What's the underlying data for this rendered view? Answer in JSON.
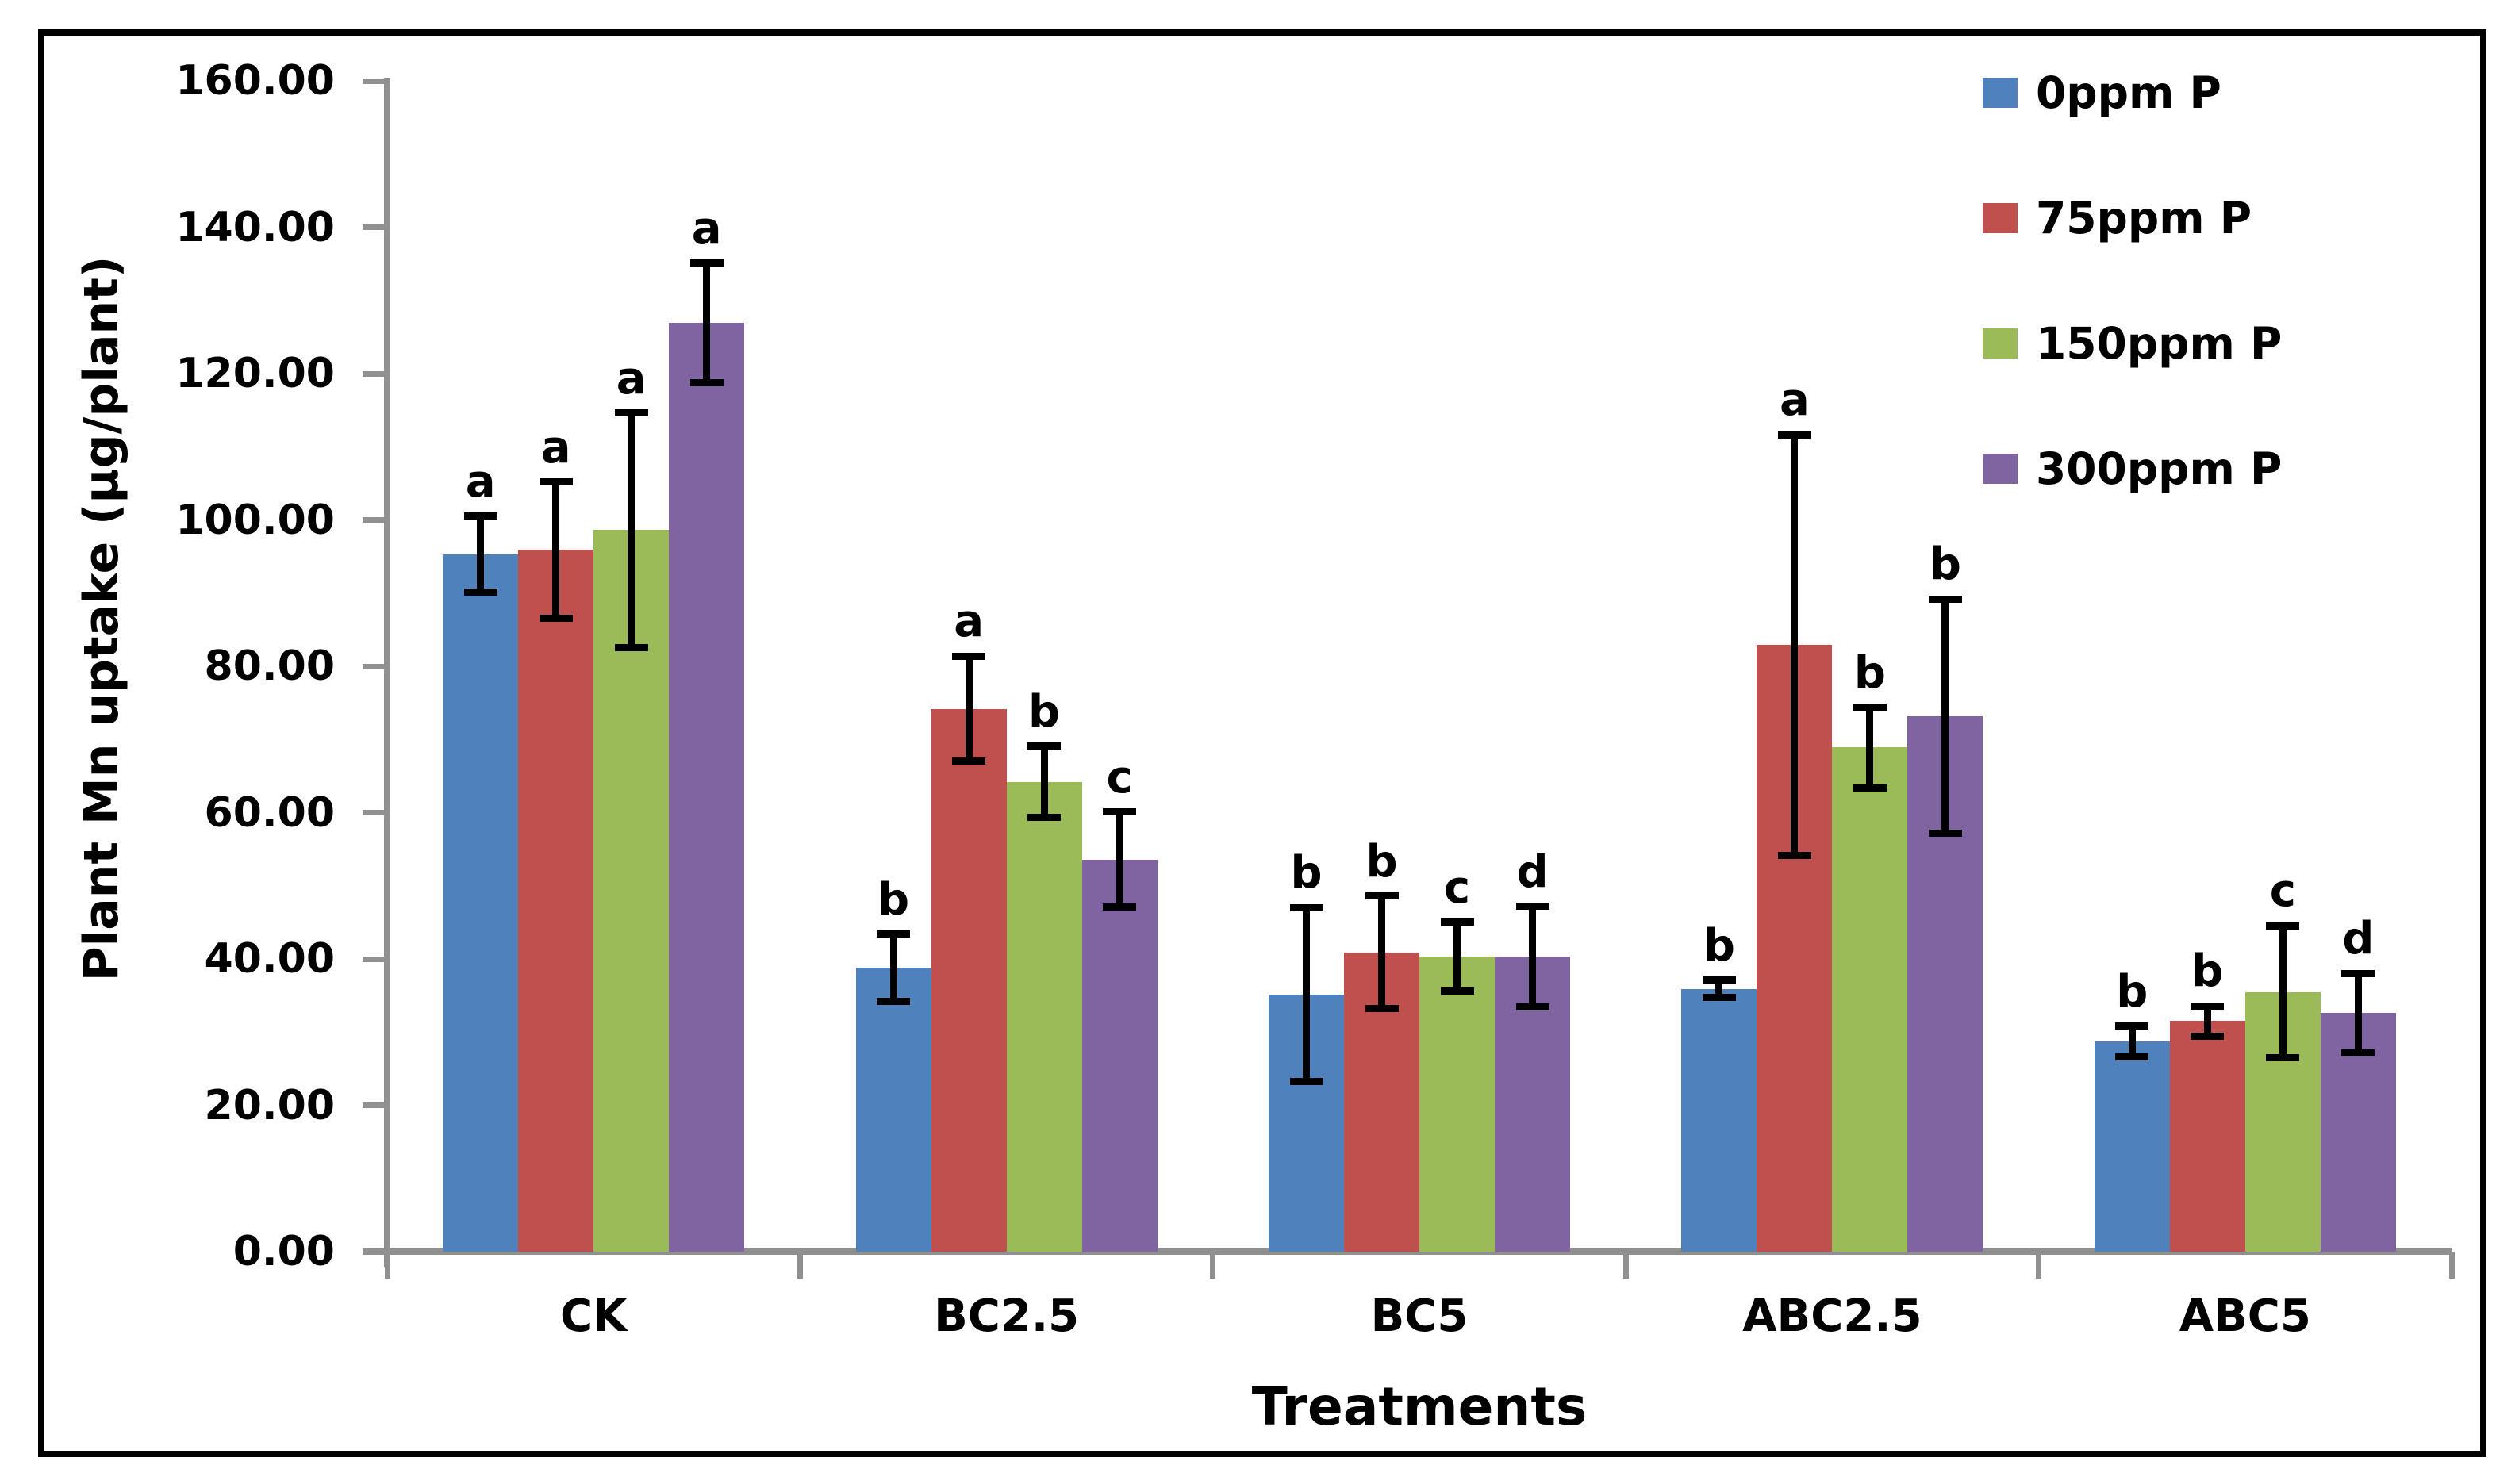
{
  "chart_data": {
    "type": "bar",
    "title": "",
    "xlabel": "Treatments",
    "ylabel": "Plant Mn uptake (µg/plant)",
    "ylim": [
      0,
      160
    ],
    "ytick_step": 20,
    "yticks": [
      "0.00",
      "20.00",
      "40.00",
      "60.00",
      "80.00",
      "100.00",
      "120.00",
      "140.00",
      "160.00"
    ],
    "grid": false,
    "legend_position": "top-right-inside",
    "error_bars": true,
    "axis_color": "#909090",
    "text_color": "#000000",
    "categories": [
      "CK",
      "BC2.5",
      "BC5",
      "ABC2.5",
      "ABC5"
    ],
    "series": [
      {
        "name": "0ppm P",
        "color": "#4F81BD",
        "values": [
          95.3,
          38.8,
          35.1,
          35.9,
          28.7
        ],
        "errors": [
          5.2,
          4.6,
          11.9,
          1.2,
          2.1
        ],
        "letters": [
          "a",
          "b",
          "b",
          "b",
          "b"
        ]
      },
      {
        "name": "75ppm P",
        "color": "#C0504D",
        "values": [
          95.9,
          74.2,
          40.9,
          82.9,
          31.5
        ],
        "errors": [
          9.3,
          7.2,
          7.7,
          28.7,
          2.1
        ],
        "letters": [
          "a",
          "a",
          "b",
          "a",
          "b"
        ]
      },
      {
        "name": "150ppm P",
        "color": "#9BBB59",
        "values": [
          98.6,
          64.2,
          40.3,
          68.9,
          35.5
        ],
        "errors": [
          16.0,
          4.9,
          4.7,
          5.5,
          9.0
        ],
        "letters": [
          "a",
          "b",
          "c",
          "b",
          "c"
        ]
      },
      {
        "name": "300ppm P",
        "color": "#8064A2",
        "values": [
          126.9,
          53.6,
          40.3,
          73.2,
          32.6
        ],
        "errors": [
          8.2,
          6.5,
          6.9,
          16.0,
          5.4
        ],
        "letters": [
          "a",
          "c",
          "d",
          "b",
          "d"
        ]
      }
    ]
  }
}
